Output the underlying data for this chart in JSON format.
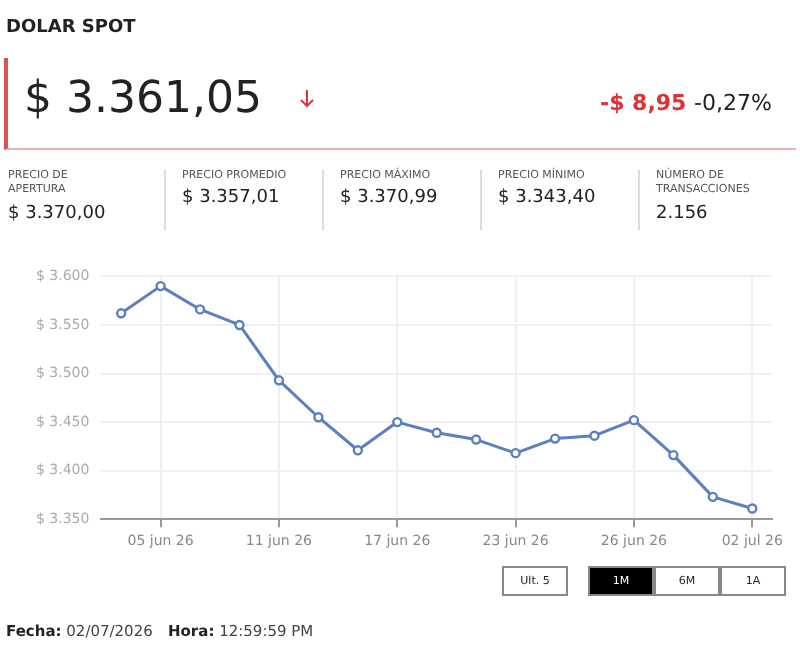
{
  "chart_data": {
    "type": "line",
    "title": "DOLAR SPOT",
    "categories": [
      null,
      "05 jun 26",
      null,
      null,
      "11 jun 26",
      null,
      null,
      "17 jun 26",
      null,
      null,
      "23 jun 26",
      null,
      null,
      "26 jun 26",
      null,
      null,
      "02 jul 26"
    ],
    "series": [
      {
        "color": "#5b7fc0",
        "values": [
          3562,
          3590,
          3566,
          3550,
          3493,
          3455,
          3421,
          3450,
          3439,
          3432,
          3418,
          3433,
          3436,
          3452,
          3416,
          3373,
          3361
        ]
      }
    ],
    "ylim": [
      3350,
      3600
    ],
    "yticks": [
      {
        "value": 3350,
        "label": "$ 3.350"
      },
      {
        "value": 3400,
        "label": "$ 3.400"
      },
      {
        "value": 3450,
        "label": "$ 3.450"
      },
      {
        "value": 3500,
        "label": "$ 3.500"
      },
      {
        "value": 3550,
        "label": "$ 3.550"
      },
      {
        "value": 3600,
        "label": "$ 3.600"
      }
    ],
    "grid": true,
    "legend": false,
    "marker": "circle",
    "line_style": "solid",
    "annotations": [
      "$ 3.361,05",
      "-$ 8,95",
      "-0,27%",
      "PRECIO DE APERTURA",
      "$ 3.370,00",
      "PRECIO PROMEDIO",
      "$ 3.357,01",
      "PRECIO MÁXIMO",
      "$ 3.370,99",
      "PRECIO MÍNIMO",
      "$ 3.343,40",
      "NÚMERO DE TRANSACCIONES",
      "2.156",
      "Ult. 5",
      "1M",
      "6M",
      "1A",
      "Fecha:",
      "02/07/2026",
      "Hora:",
      "12:59:59 PM"
    ]
  }
}
